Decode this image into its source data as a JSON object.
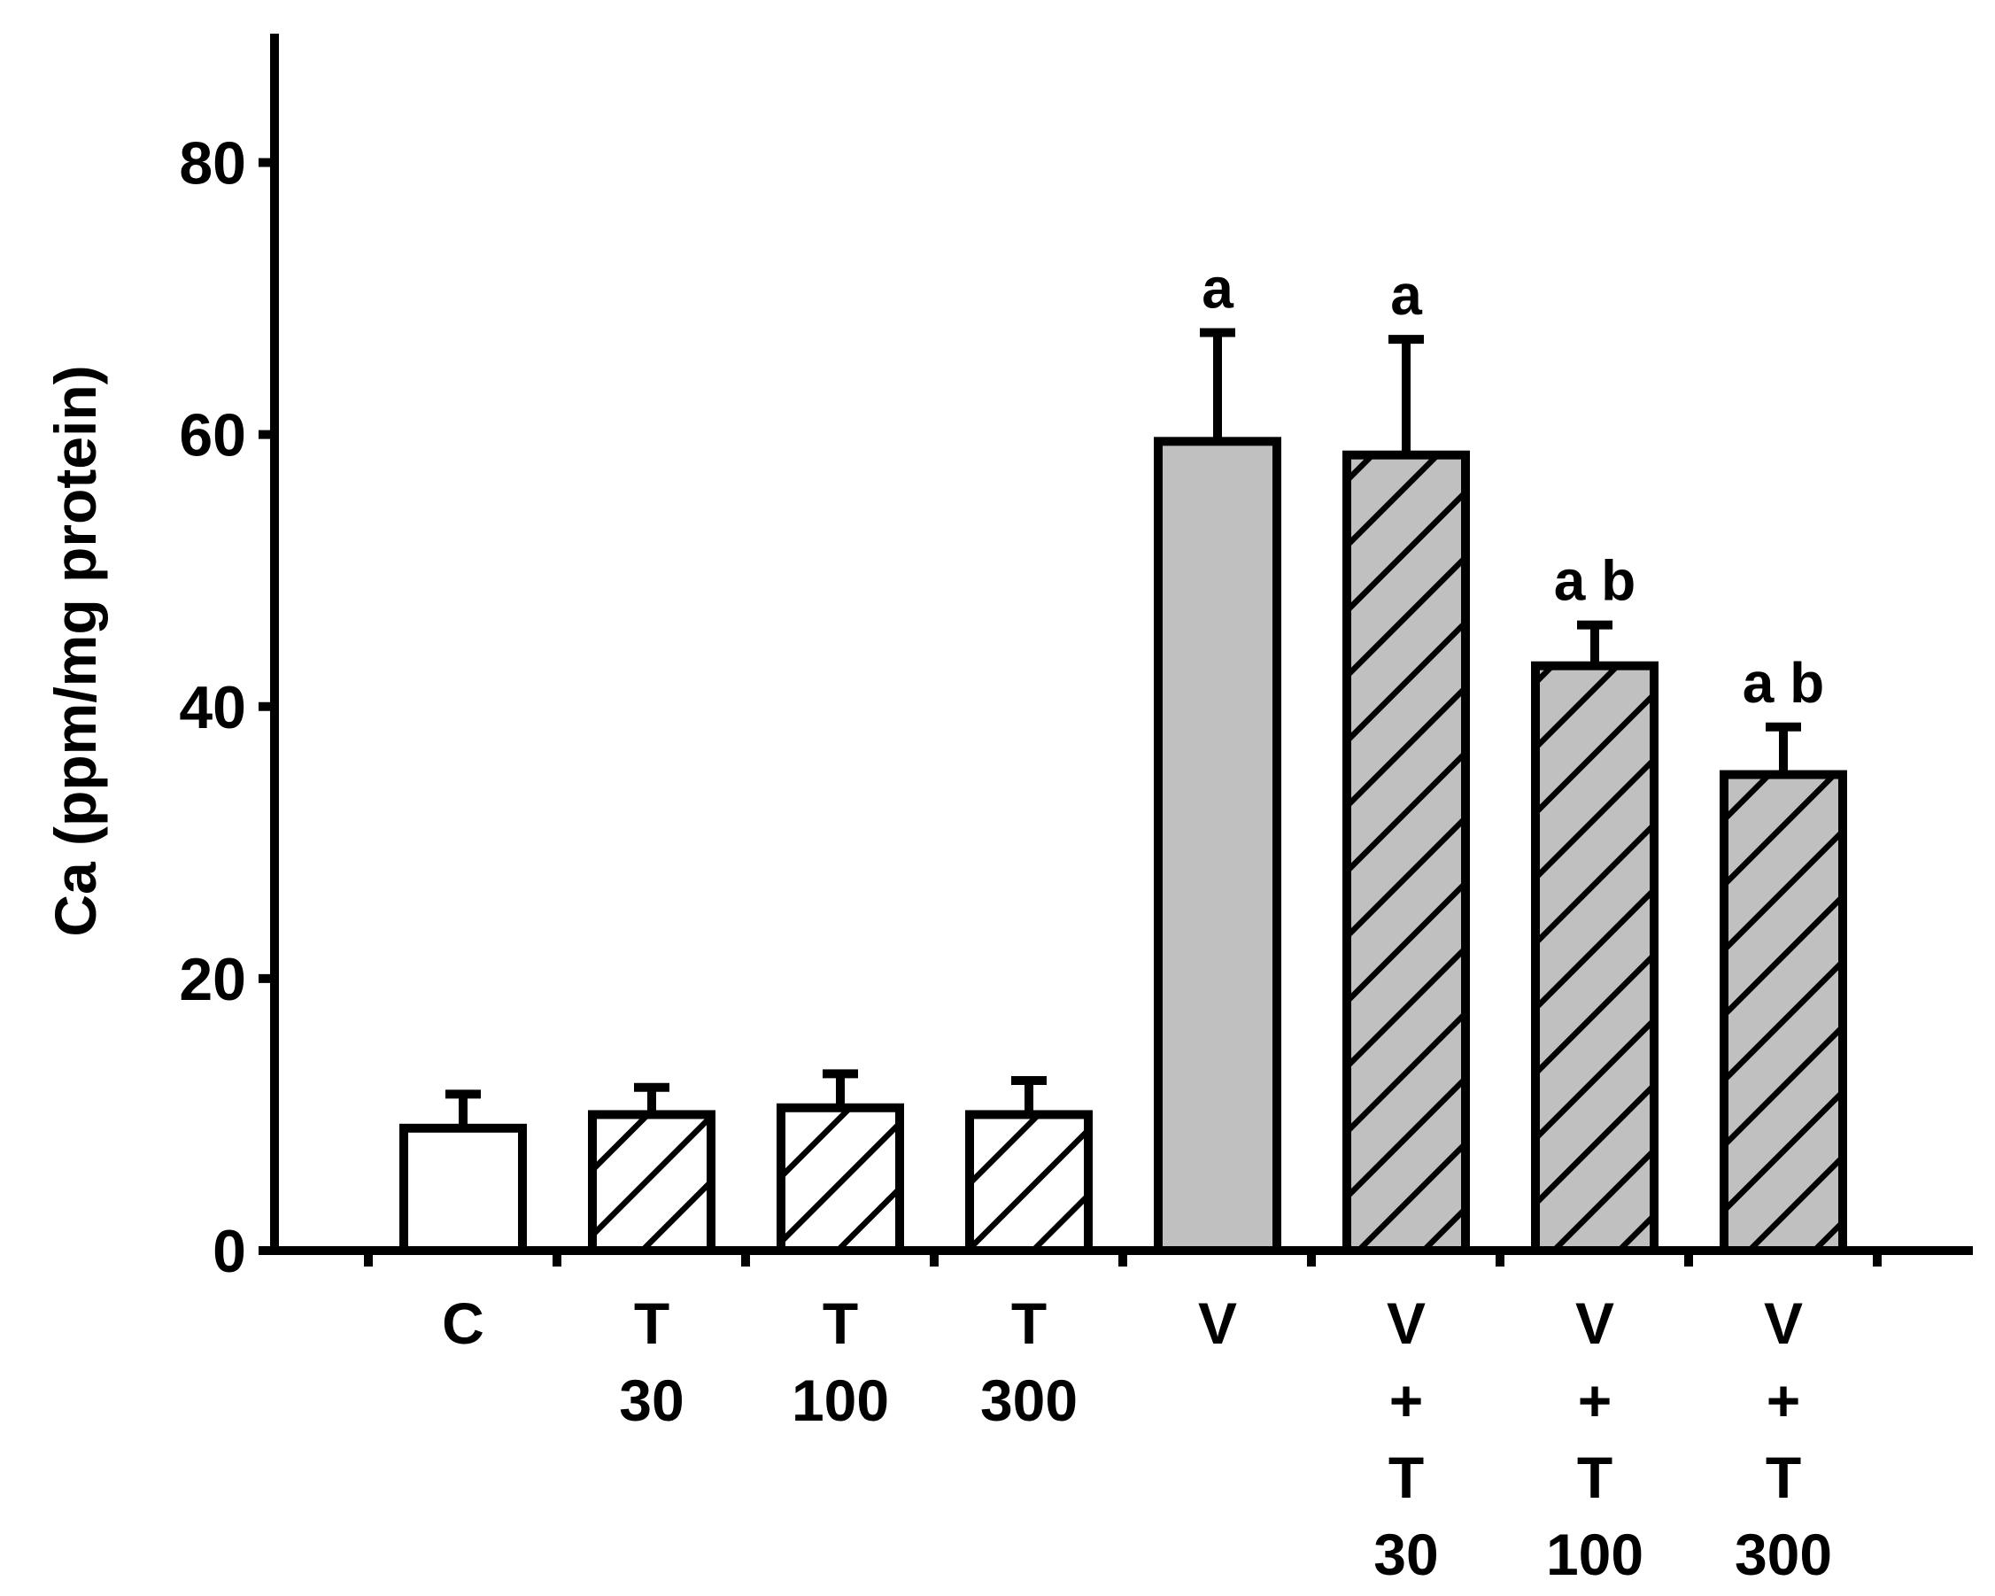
{
  "chart_data": {
    "type": "bar",
    "title": "",
    "xlabel": "",
    "ylabel": "Ca (ppm/mg protein)",
    "ylim": [
      0,
      90
    ],
    "yticks": [
      0,
      20,
      40,
      60,
      80
    ],
    "ytick_labels": [
      "0",
      "20",
      "40",
      "60",
      "80"
    ],
    "grid": false,
    "legend": "none",
    "categories": [
      {
        "lines": [
          "C"
        ]
      },
      {
        "lines": [
          "T",
          "30"
        ]
      },
      {
        "lines": [
          "T",
          "100"
        ]
      },
      {
        "lines": [
          "T",
          "300"
        ]
      },
      {
        "lines": [
          "V"
        ]
      },
      {
        "lines": [
          "V",
          "+",
          "T",
          "30"
        ]
      },
      {
        "lines": [
          "V",
          "+",
          "T",
          "100"
        ]
      },
      {
        "lines": [
          "V",
          "+",
          "T",
          "300"
        ]
      }
    ],
    "values": [
      9,
      10,
      10.5,
      10,
      59.5,
      58.5,
      43,
      35
    ],
    "errors": [
      2.5,
      2,
      2.5,
      2.5,
      8,
      8.5,
      3,
      3.5
    ],
    "fill": [
      "white",
      "white",
      "white",
      "white",
      "gray",
      "gray",
      "gray",
      "gray"
    ],
    "hatched": [
      false,
      true,
      true,
      true,
      false,
      true,
      true,
      true
    ],
    "annotations": [
      "",
      "",
      "",
      "",
      "a",
      "a",
      "a b",
      "a b"
    ],
    "colors": {
      "gray_fill": "#c0c0c0",
      "white_fill": "#ffffff",
      "stroke": "#000000"
    }
  }
}
